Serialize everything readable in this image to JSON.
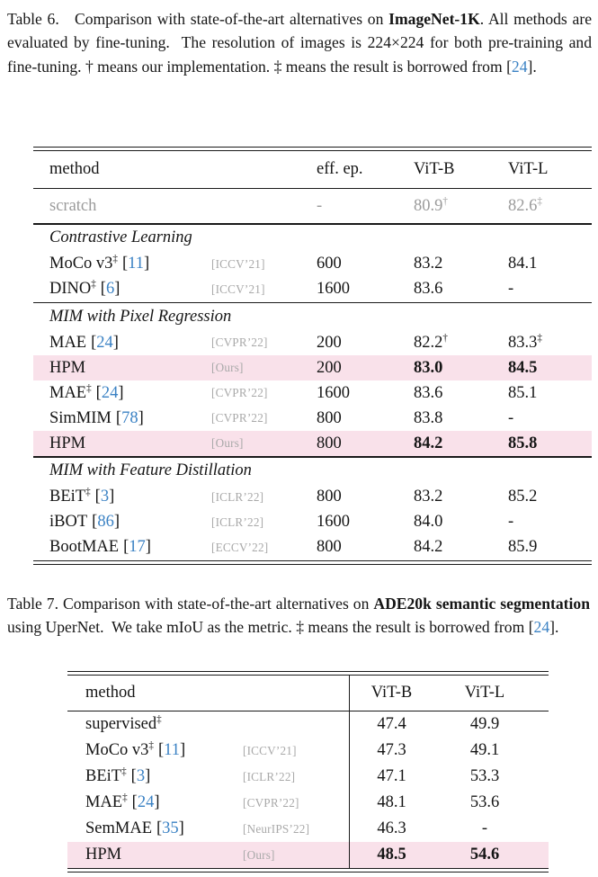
{
  "colors": {
    "link_blue": "#3b82c4",
    "highlight_pink": "#f9e1ea",
    "venue_gray": "#a9a9a9",
    "muted_gray": "#9b9b9b"
  },
  "punct": {
    "cite_open": "[",
    "cite_close": "]"
  },
  "caption6": {
    "segments": [
      {
        "style": "normal",
        "text": "Table 6.   Comparison with state-of-the-art alternatives on "
      },
      {
        "style": "bold",
        "text": "ImageNet-1K"
      },
      {
        "style": "normal",
        "text": ". All methods are evaluated by fine-tuning.  The resolution of images is 224×224 for both pre-training and fine-tuning. † means our implementation. ‡ means the result is borrowed from "
      },
      {
        "style": "cite",
        "text": "24"
      },
      {
        "style": "normal",
        "text": "."
      }
    ]
  },
  "table6": {
    "headers": {
      "method": "method",
      "epochs": "eff. ep.",
      "vitb": "ViT-B",
      "vitl": "ViT-L"
    },
    "rows": [
      {
        "type": "data",
        "gray": true,
        "tall": true,
        "name": "scratch",
        "venue": "",
        "ep": "-",
        "vitb": "80.9",
        "vitb_sup": "†",
        "vitl": "82.6",
        "vitl_sup": "‡"
      },
      {
        "type": "rule"
      },
      {
        "type": "section",
        "label": "Contrastive Learning"
      },
      {
        "type": "data",
        "name": "MoCo v3",
        "name_sup": "‡",
        "cite": "11",
        "venue": "[ICCV’21]",
        "ep": "600",
        "vitb": "83.2",
        "vitl": "84.1"
      },
      {
        "type": "data",
        "name": "DINO",
        "name_sup": "‡",
        "cite": "6",
        "venue": "[ICCV’21]",
        "ep": "1600",
        "vitb": "83.6",
        "vitl": "-"
      },
      {
        "type": "rule"
      },
      {
        "type": "section",
        "label": "MIM with Pixel Regression"
      },
      {
        "type": "data",
        "name": "MAE",
        "cite": "24",
        "venue": "[CVPR’22]",
        "ep": "200",
        "vitb": "82.2",
        "vitb_sup": "†",
        "vitl": "83.3",
        "vitl_sup": "‡"
      },
      {
        "type": "data",
        "highlight": true,
        "bold": true,
        "name": "HPM",
        "venue": "[Ours]",
        "ep": "200",
        "vitb": "83.0",
        "vitl": "84.5"
      },
      {
        "type": "data",
        "name": "MAE",
        "name_sup": "‡",
        "cite": "24",
        "venue": "[CVPR’22]",
        "ep": "1600",
        "vitb": "83.6",
        "vitl": "85.1"
      },
      {
        "type": "data",
        "name": "SimMIM",
        "cite": "78",
        "venue": "[CVPR’22]",
        "ep": "800",
        "vitb": "83.8",
        "vitl": "-"
      },
      {
        "type": "data",
        "highlight": true,
        "bold": true,
        "name": "HPM",
        "venue": "[Ours]",
        "ep": "800",
        "vitb": "84.2",
        "vitl": "85.8"
      },
      {
        "type": "rule"
      },
      {
        "type": "section",
        "label": "MIM with Feature Distillation"
      },
      {
        "type": "data",
        "name": "BEiT",
        "name_sup": "‡",
        "cite": "3",
        "venue": "[ICLR’22]",
        "ep": "800",
        "vitb": "83.2",
        "vitl": "85.2"
      },
      {
        "type": "data",
        "name": "iBOT",
        "cite": "86",
        "venue": "[ICLR’22]",
        "ep": "1600",
        "vitb": "84.0",
        "vitl": "-"
      },
      {
        "type": "data",
        "name": "BootMAE",
        "cite": "17",
        "venue": "[ECCV’22]",
        "ep": "800",
        "vitb": "84.2",
        "vitl": "85.9"
      }
    ]
  },
  "caption7": {
    "segments": [
      {
        "style": "normal",
        "text": "Table 7. Comparison with state-of-the-art alternatives on "
      },
      {
        "style": "bold",
        "text": "ADE20k semantic segmentation"
      },
      {
        "style": "normal",
        "text": " using UperNet.  We take mIoU as the metric. ‡ means the result is borrowed from "
      },
      {
        "style": "cite",
        "text": "24"
      },
      {
        "style": "normal",
        "text": "."
      }
    ]
  },
  "table7": {
    "headers": {
      "method": "method",
      "vitb": "ViT-B",
      "vitl": "ViT-L"
    },
    "rows": [
      {
        "type": "data",
        "name": "supervised",
        "name_sup": "‡",
        "venue": "",
        "vitb": "47.4",
        "vitl": "49.9"
      },
      {
        "type": "data",
        "name": "MoCo v3",
        "name_sup": "‡",
        "cite": "11",
        "venue": "[ICCV’21]",
        "vitb": "47.3",
        "vitl": "49.1"
      },
      {
        "type": "data",
        "name": "BEiT",
        "name_sup": "‡",
        "cite": "3",
        "venue": "[ICLR’22]",
        "vitb": "47.1",
        "vitl": "53.3"
      },
      {
        "type": "data",
        "name": "MAE",
        "name_sup": "‡",
        "cite": "24",
        "venue": "[CVPR’22]",
        "vitb": "48.1",
        "vitl": "53.6"
      },
      {
        "type": "data",
        "name": "SemMAE",
        "cite": "35",
        "venue": "[NeurIPS’22]",
        "vitb": "46.3",
        "vitl": "-"
      },
      {
        "type": "data",
        "highlight": true,
        "bold": true,
        "name": "HPM",
        "venue": "[Ours]",
        "vitb": "48.5",
        "vitl": "54.6"
      }
    ]
  }
}
